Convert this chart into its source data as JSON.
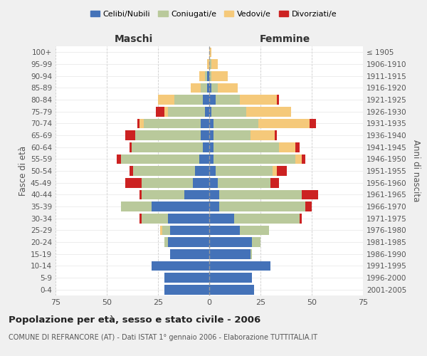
{
  "age_groups": [
    "0-4",
    "5-9",
    "10-14",
    "15-19",
    "20-24",
    "25-29",
    "30-34",
    "35-39",
    "40-44",
    "45-49",
    "50-54",
    "55-59",
    "60-64",
    "65-69",
    "70-74",
    "75-79",
    "80-84",
    "85-89",
    "90-94",
    "95-99",
    "100+"
  ],
  "birth_years": [
    "2001-2005",
    "1996-2000",
    "1991-1995",
    "1986-1990",
    "1981-1985",
    "1976-1980",
    "1971-1975",
    "1966-1970",
    "1961-1965",
    "1956-1960",
    "1951-1955",
    "1946-1950",
    "1941-1945",
    "1936-1940",
    "1931-1935",
    "1926-1930",
    "1921-1925",
    "1916-1920",
    "1911-1915",
    "1906-1910",
    "≤ 1905"
  ],
  "colors": {
    "celibe": "#4472b8",
    "coniugato": "#b9c99b",
    "vedovo": "#f5c97a",
    "divorziato": "#cc2222"
  },
  "male": {
    "celibe": [
      22,
      22,
      28,
      19,
      20,
      19,
      20,
      28,
      12,
      8,
      7,
      5,
      3,
      4,
      4,
      2,
      3,
      1,
      1,
      0,
      0
    ],
    "coniugato": [
      0,
      0,
      0,
      0,
      2,
      4,
      13,
      15,
      21,
      25,
      30,
      38,
      35,
      32,
      28,
      18,
      14,
      3,
      1,
      0,
      0
    ],
    "vedovo": [
      0,
      0,
      0,
      0,
      0,
      1,
      0,
      0,
      0,
      0,
      0,
      0,
      0,
      0,
      2,
      2,
      8,
      5,
      3,
      1,
      0
    ],
    "divorziato": [
      0,
      0,
      0,
      0,
      0,
      0,
      1,
      0,
      1,
      8,
      2,
      2,
      1,
      5,
      1,
      4,
      0,
      0,
      0,
      0,
      0
    ]
  },
  "female": {
    "nubile": [
      22,
      21,
      30,
      20,
      21,
      15,
      12,
      5,
      5,
      4,
      3,
      2,
      2,
      2,
      2,
      1,
      3,
      1,
      0,
      0,
      0
    ],
    "coniugata": [
      0,
      0,
      0,
      1,
      4,
      14,
      32,
      42,
      40,
      26,
      28,
      40,
      32,
      18,
      22,
      17,
      12,
      3,
      1,
      1,
      0
    ],
    "vedova": [
      0,
      0,
      0,
      0,
      0,
      0,
      0,
      0,
      0,
      0,
      2,
      3,
      8,
      12,
      25,
      22,
      18,
      10,
      8,
      3,
      1
    ],
    "divorziata": [
      0,
      0,
      0,
      0,
      0,
      0,
      1,
      3,
      8,
      4,
      5,
      2,
      2,
      1,
      3,
      0,
      1,
      0,
      0,
      0,
      0
    ]
  },
  "xlim": 75,
  "title": "Popolazione per età, sesso e stato civile - 2006",
  "subtitle": "COMUNE DI REFRANCORE (AT) - Dati ISTAT 1° gennaio 2006 - Elaborazione TUTTITALIA.IT",
  "xlabel_left": "Maschi",
  "xlabel_right": "Femmine",
  "ylabel_left": "Fasce di età",
  "ylabel_right": "Anni di nascita",
  "legend_labels": [
    "Celibi/Nubili",
    "Coniugati/e",
    "Vedovi/e",
    "Divorziati/e"
  ],
  "bg_color": "#f0f0f0",
  "bar_bg_color": "#ffffff",
  "grid_color": "#cccccc"
}
